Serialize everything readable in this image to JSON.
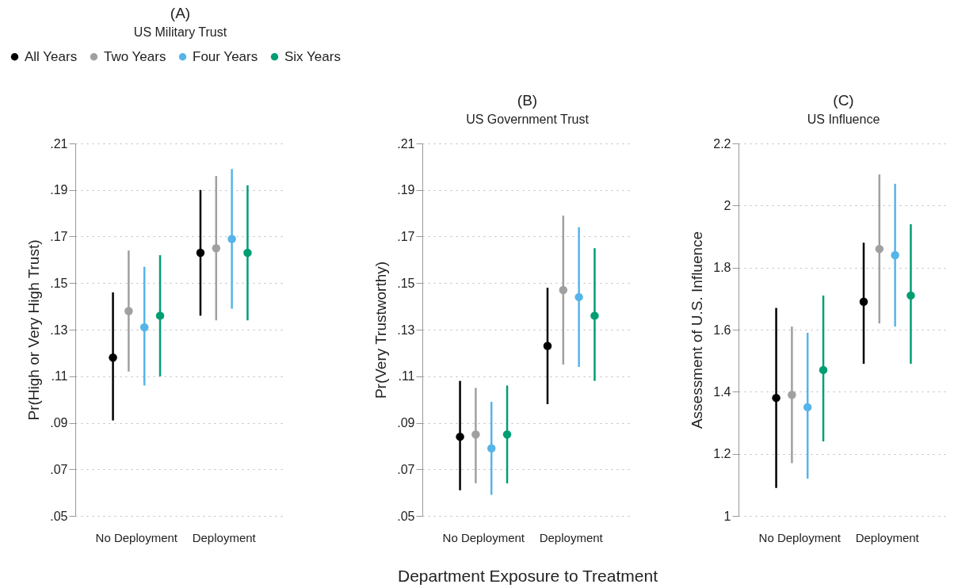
{
  "chart_data": [
    {
      "type": "scatter",
      "title": "(A)",
      "subtitle": "US Military Trust",
      "ylabel": "Pr(High or Very High Trust)",
      "categories": [
        "No Deployment",
        "Deployment"
      ],
      "ylim": [
        0.05,
        0.21
      ],
      "yticks": [
        {
          "value": 0.05,
          "label": ".05"
        },
        {
          "value": 0.07,
          "label": ".07"
        },
        {
          "value": 0.09,
          "label": ".09"
        },
        {
          "value": 0.11,
          "label": ".11"
        },
        {
          "value": 0.13,
          "label": ".13"
        },
        {
          "value": 0.15,
          "label": ".15"
        },
        {
          "value": 0.17,
          "label": ".17"
        },
        {
          "value": 0.19,
          "label": ".19"
        },
        {
          "value": 0.21,
          "label": ".21"
        }
      ],
      "grid": "y",
      "marker": "circle",
      "legend": "top left",
      "series": [
        {
          "name": "All Years",
          "color": "#000000",
          "values": [
            0.118,
            0.163
          ],
          "errors": [
            [
              0.091,
              0.146
            ],
            [
              0.136,
              0.19
            ]
          ]
        },
        {
          "name": "Two Years",
          "color": "#a0a0a0",
          "values": [
            0.138,
            0.165
          ],
          "errors": [
            [
              0.112,
              0.164
            ],
            [
              0.134,
              0.196
            ]
          ]
        },
        {
          "name": "Four Years",
          "color": "#56b4e9",
          "values": [
            0.131,
            0.169
          ],
          "errors": [
            [
              0.106,
              0.157
            ],
            [
              0.139,
              0.199
            ]
          ]
        },
        {
          "name": "Six Years",
          "color": "#009e73",
          "values": [
            0.136,
            0.163
          ],
          "errors": [
            [
              0.11,
              0.162
            ],
            [
              0.134,
              0.192
            ]
          ]
        }
      ]
    },
    {
      "type": "scatter",
      "title": "(B)",
      "subtitle": "US Government Trust",
      "ylabel": "Pr(Very Trustworthy)",
      "xlabel": "Department Exposure to Treatment",
      "categories": [
        "No Deployment",
        "Deployment"
      ],
      "ylim": [
        0.05,
        0.21
      ],
      "yticks": [
        {
          "value": 0.05,
          "label": ".05"
        },
        {
          "value": 0.07,
          "label": ".07"
        },
        {
          "value": 0.09,
          "label": ".09"
        },
        {
          "value": 0.11,
          "label": ".11"
        },
        {
          "value": 0.13,
          "label": ".13"
        },
        {
          "value": 0.15,
          "label": ".15"
        },
        {
          "value": 0.17,
          "label": ".17"
        },
        {
          "value": 0.19,
          "label": ".19"
        },
        {
          "value": 0.21,
          "label": ".21"
        }
      ],
      "grid": "y",
      "marker": "circle",
      "series": [
        {
          "color": "#000000",
          "values": [
            0.084,
            0.123
          ],
          "errors": [
            [
              0.061,
              0.108
            ],
            [
              0.098,
              0.148
            ]
          ]
        },
        {
          "color": "#a0a0a0",
          "values": [
            0.085,
            0.147
          ],
          "errors": [
            [
              0.064,
              0.105
            ],
            [
              0.115,
              0.179
            ]
          ]
        },
        {
          "color": "#56b4e9",
          "values": [
            0.079,
            0.144
          ],
          "errors": [
            [
              0.059,
              0.099
            ],
            [
              0.114,
              0.174
            ]
          ]
        },
        {
          "color": "#009e73",
          "values": [
            0.085,
            0.136
          ],
          "errors": [
            [
              0.064,
              0.106
            ],
            [
              0.108,
              0.165
            ]
          ]
        }
      ]
    },
    {
      "type": "scatter",
      "title": "(C)",
      "subtitle": "US Influence",
      "ylabel": "Assessment of U.S. Influence",
      "categories": [
        "No Deployment",
        "Deployment"
      ],
      "ylim": [
        1,
        2.2
      ],
      "yticks": [
        1,
        1.2,
        1.4,
        1.6,
        1.8,
        2,
        2.2
      ],
      "grid": "y",
      "marker": "circle",
      "series": [
        {
          "color": "#000000",
          "values": [
            1.38,
            1.69
          ],
          "errors": [
            [
              1.09,
              1.67
            ],
            [
              1.49,
              1.88
            ]
          ]
        },
        {
          "color": "#a0a0a0",
          "values": [
            1.39,
            1.86
          ],
          "errors": [
            [
              1.17,
              1.61
            ],
            [
              1.62,
              2.1
            ]
          ]
        },
        {
          "color": "#56b4e9",
          "values": [
            1.35,
            1.84
          ],
          "errors": [
            [
              1.12,
              1.59
            ],
            [
              1.61,
              2.07
            ]
          ]
        },
        {
          "color": "#009e73",
          "values": [
            1.47,
            1.71
          ],
          "errors": [
            [
              1.24,
              1.71
            ],
            [
              1.49,
              1.94
            ]
          ]
        }
      ]
    }
  ]
}
